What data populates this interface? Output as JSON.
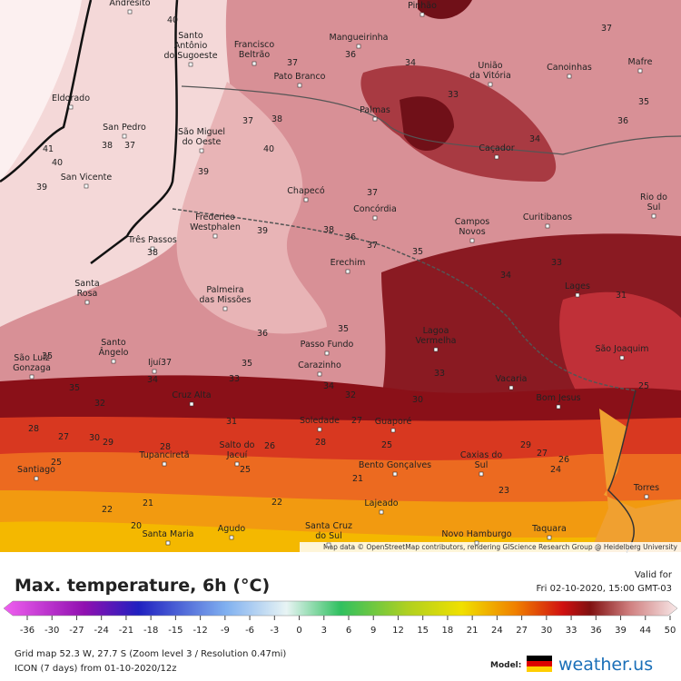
{
  "map": {
    "attribution": "Map data © OpenStreetMap contributors, rendering GIScience Research Group @ Heidelberg University",
    "cities": [
      [
        "Andresito"
      ],
      [
        "Pinhão"
      ],
      [
        "Santo",
        "Antônio",
        "do Sugoeste"
      ],
      [
        "Francisco",
        "Beltrão"
      ],
      [
        "Mangueirinha"
      ],
      [
        "União",
        "da Vitória"
      ],
      [
        "Canoinhas"
      ],
      [
        "Mafre"
      ],
      [
        "Pato Branco"
      ],
      [
        "Eldorado"
      ],
      [
        "San Pedro"
      ],
      [
        "São Miguel",
        "do Oeste"
      ],
      [
        "Palmas"
      ],
      [
        "Caçador"
      ],
      [
        "San Vicente"
      ],
      [
        "Chapecó"
      ],
      [
        "Concórdia"
      ],
      [
        "Rio do",
        "Sul"
      ],
      [
        "Frederico",
        "Westphalen"
      ],
      [
        "Campos",
        "Novos"
      ],
      [
        "Curitibanos"
      ],
      [
        "Três Passos"
      ],
      [
        "Erechim"
      ],
      [
        "Santa",
        "Rosa"
      ],
      [
        "Lages"
      ],
      [
        "Palmeira",
        "das Missões"
      ],
      [
        "Lagoa",
        "Vermelha"
      ],
      [
        "Santo",
        "Ângelo"
      ],
      [
        "São Joaquim"
      ],
      [
        "Passo Fundo"
      ],
      [
        "São Luiz",
        "Gonzaga"
      ],
      [
        "Ijuí"
      ],
      [
        "Carazinho"
      ],
      [
        "Vacaria"
      ],
      [
        "Bom Jesus"
      ],
      [
        "Cruz Alta"
      ],
      [
        "Soledade"
      ],
      [
        "Guaporé"
      ],
      [
        "Tupanciretã"
      ],
      [
        "Salto do",
        "Jacuí"
      ],
      [
        "Caxias do",
        "Sul"
      ],
      [
        "Bento Gonçalves"
      ],
      [
        "Santiago"
      ],
      [
        "Torres"
      ],
      [
        "Lajeado"
      ],
      [
        "Santa Maria"
      ],
      [
        "Agudo"
      ],
      [
        "Santa Cruz",
        "do Sul"
      ],
      [
        "Novo Hamburgo"
      ],
      [
        "Taquara"
      ]
    ],
    "temperature_labels": [
      40,
      37,
      36,
      37,
      34,
      33,
      35,
      36,
      37,
      38,
      34,
      41,
      38,
      37,
      40,
      40,
      39,
      39,
      37,
      38,
      39,
      36,
      37,
      35,
      38,
      34,
      33,
      31,
      35,
      36,
      35,
      37,
      34,
      33,
      34,
      35,
      33,
      30,
      32,
      32,
      31,
      27,
      28,
      27,
      30,
      29,
      28,
      26,
      28,
      25,
      29,
      27,
      24,
      26,
      25,
      25,
      21,
      23,
      22,
      21,
      22,
      20,
      25,
      35
    ]
  },
  "legend": {
    "title": "Max. temperature, 6h (°C)",
    "valid_label": "Valid for",
    "valid_time": "Fri 02-10-2020, 15:00 GMT-03",
    "ticks": [
      -36,
      -30,
      -27,
      -24,
      -21,
      -18,
      -15,
      -12,
      -9,
      -6,
      -3,
      0,
      3,
      6,
      9,
      12,
      15,
      18,
      21,
      24,
      27,
      30,
      33,
      36,
      39,
      44,
      50
    ]
  },
  "footer": {
    "grid": "Grid map 52.3 W, 27.7 S (Zoom level 3 / Resolution 0.47mi)",
    "model_run": "ICON (7 days) from 01-10-2020/12z",
    "model_label": "Model:",
    "brand": "weather.us"
  }
}
